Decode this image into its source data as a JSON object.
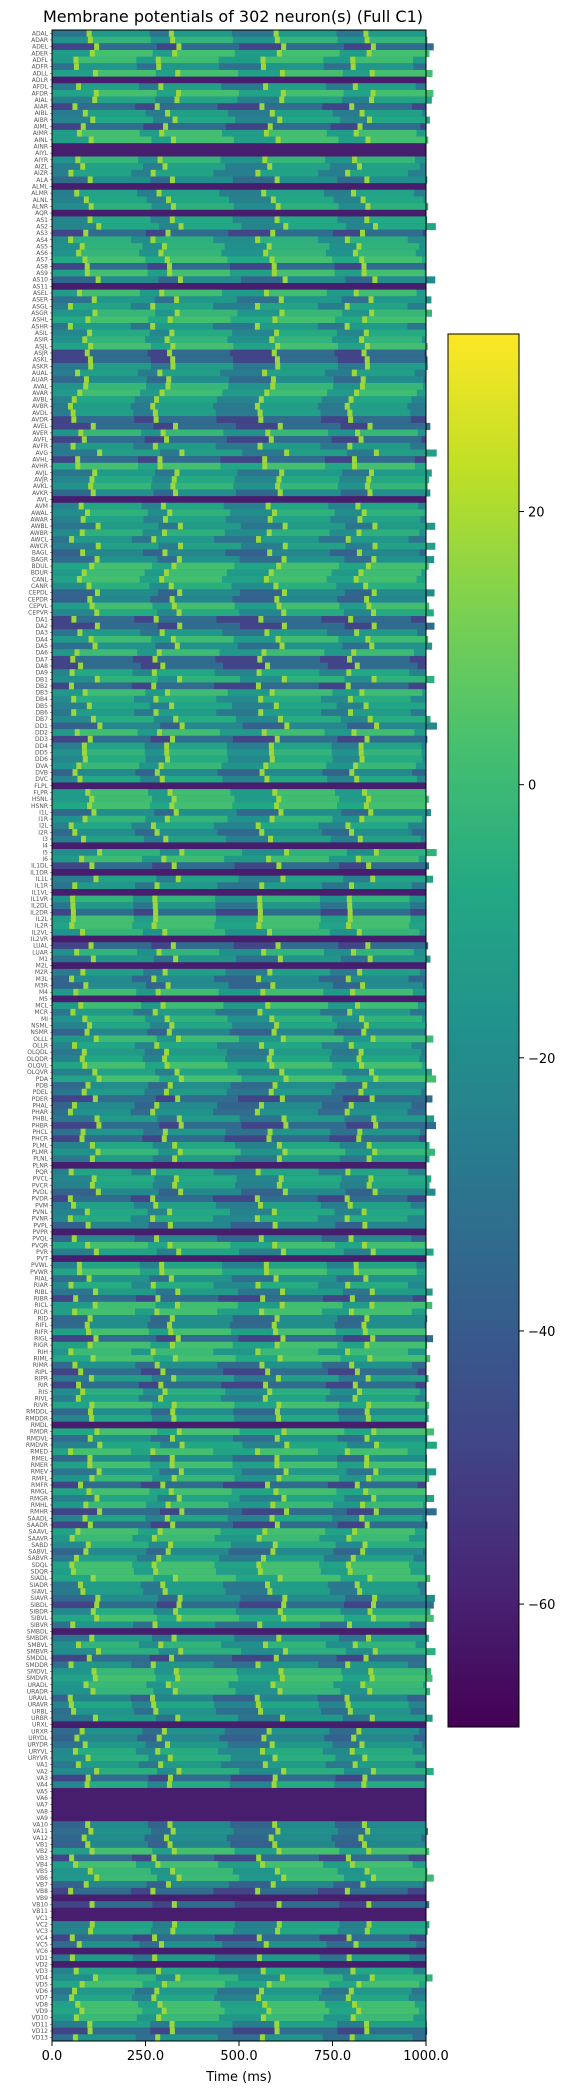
{
  "chart_data": {
    "type": "heatmap",
    "title": "Membrane potentials of 302 neuron(s) (Full C1)",
    "xlabel": "Time (ms)",
    "ylabel": "",
    "xlim": [
      0,
      1000
    ],
    "x_ticks": [
      "0.0",
      "250.0",
      "500.0",
      "750.0",
      "1000.0"
    ],
    "n_rows": 302,
    "colormap": "viridis",
    "colorbar": {
      "range": [
        -69,
        33
      ],
      "ticks": [
        20,
        0,
        -20,
        -40,
        -60
      ],
      "tick_labels": [
        "20",
        "0",
        "−20",
        "−40",
        "−60"
      ]
    },
    "row_labels_sample": [
      "ADAL",
      "ADAR",
      "ADEL",
      "ADER",
      "ADFL",
      "ADFR",
      "ADLL",
      "ADLR",
      "AFDL",
      "AFDR",
      "AIAL",
      "AIAR",
      "AIBL",
      "AIBR",
      "AIML",
      "AIMR",
      "AINL",
      "AINR",
      "AIYL",
      "AIYR",
      "AIZL",
      "AIZR",
      "ALA",
      "ALML",
      "ALMR",
      "ALNL",
      "ALNR",
      "AQR",
      "AS1",
      "AS2",
      "AS3",
      "AS4",
      "AS5",
      "AS6",
      "AS7",
      "AS8",
      "AS9",
      "AS10",
      "AS11",
      "ASEL",
      "ASER",
      "ASGL",
      "ASGR",
      "ASHL",
      "ASHR",
      "ASIL",
      "ASIR",
      "ASJL",
      "ASJR",
      "ASKL",
      "ASKR",
      "AUAL",
      "AUAR",
      "AVAL",
      "AVAR",
      "AVBL",
      "AVBR",
      "AVDL",
      "AVDR",
      "AVEL",
      "AVER",
      "AVFL",
      "AVFR",
      "AVG",
      "AVHL",
      "AVHR",
      "AVJL",
      "AVJR",
      "AVKL",
      "AVKR",
      "AVL",
      "AVM",
      "AWAL",
      "AWAR",
      "AWBL",
      "AWBR",
      "AWCL",
      "AWCR",
      "BAGL",
      "BAGR",
      "BDUL",
      "BDUR",
      "CANL",
      "CANR",
      "CEPDL",
      "CEPDR",
      "CEPVL",
      "CEPVR",
      "DA1",
      "DA2",
      "DA3",
      "DA4",
      "DA5",
      "DA6",
      "DA7",
      "DA8",
      "DA9",
      "DB1",
      "DB2",
      "DB3",
      "DB4",
      "DB5",
      "DB6",
      "DB7",
      "DD1",
      "DD2",
      "DD3",
      "DD4",
      "DD5",
      "DD6",
      "DVA",
      "DVB",
      "DVC",
      "FLPL",
      "FLPR",
      "HSNL",
      "HSNR",
      "I1L",
      "I1R",
      "I2L",
      "I2R",
      "I3",
      "I4",
      "I5",
      "I6",
      "IL1DL",
      "IL1DR",
      "IL1L",
      "IL1R",
      "IL1VL",
      "IL1VR",
      "IL2DL",
      "IL2DR",
      "IL2L",
      "IL2R",
      "IL2VL",
      "IL2VR",
      "LUAL",
      "LUAR",
      "M1",
      "M2L",
      "M2R",
      "M3L",
      "M3R",
      "M4",
      "M5",
      "MCL",
      "MCR",
      "MI",
      "NSML",
      "NSMR",
      "OLLL",
      "OLLR",
      "OLQDL",
      "OLQDR",
      "OLQVL",
      "OLQVR",
      "PDA",
      "PDB",
      "PDEL",
      "PDER",
      "PHAL",
      "PHAR",
      "PHBL",
      "PHBR",
      "PHCL",
      "PHCR",
      "PLML",
      "PLMR",
      "PLNL",
      "PLNR",
      "PQR",
      "PVCL",
      "PVCR",
      "PVDL",
      "PVDR",
      "PVM",
      "PVNL",
      "PVNR",
      "PVPL",
      "PVPR",
      "PVQL",
      "PVQR",
      "PVR",
      "PVT",
      "PVWL",
      "PVWR",
      "RIAL",
      "RIAR",
      "RIBL",
      "RIBR",
      "RICL",
      "RICR",
      "RID",
      "RIFL",
      "RIFR",
      "RIGL",
      "RIGR",
      "RIH",
      "RIML",
      "RIMR",
      "RIPL",
      "RIPR",
      "RIR",
      "RIS",
      "RIVL",
      "RIVR",
      "RMDDL",
      "RMDDR",
      "RMDL",
      "RMDR",
      "RMDVL",
      "RMDVR",
      "RMED",
      "RMEL",
      "RMER",
      "RMEV",
      "RMFL",
      "RMFR",
      "RMGL",
      "RMGR",
      "RMHL",
      "RMHR",
      "SAADL",
      "SAADR",
      "SAAVL",
      "SAAVR",
      "SABD",
      "SABVL",
      "SABVR",
      "SDQL",
      "SDQR",
      "SIADL",
      "SIADR",
      "SIAVL",
      "SIAVR",
      "SIBDL",
      "SIBDR",
      "SIBVL",
      "SIBVR",
      "SMBDL",
      "SMBDR",
      "SMBVL",
      "SMBVR",
      "SMDDL",
      "SMDDR",
      "SMDVL",
      "SMDVR",
      "URADL",
      "URADR",
      "URAVL",
      "URAVR",
      "URBL",
      "URBR",
      "URXL",
      "URXR",
      "URYDL",
      "URYDR",
      "URYVL",
      "URYVR",
      "VA1",
      "VA2",
      "VA3",
      "VA4",
      "VA5",
      "VA6",
      "VA7",
      "VA8",
      "VA9",
      "VA10",
      "VA11",
      "VA12",
      "VB1",
      "VB2",
      "VB3",
      "VB4",
      "VB5",
      "VB6",
      "VB7",
      "VB8",
      "VB9",
      "VB10",
      "VB11",
      "VC1",
      "VC2",
      "VC3",
      "VC4",
      "VC5",
      "VC6",
      "VD1",
      "VD2",
      "VD3",
      "VD4",
      "VD5",
      "VD6",
      "VD7",
      "VD8",
      "VD9",
      "VD10",
      "VD11",
      "VD12",
      "VD13"
    ]
  }
}
